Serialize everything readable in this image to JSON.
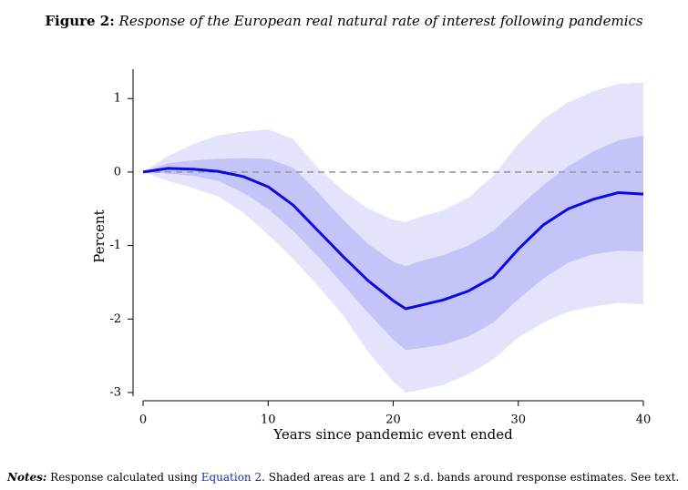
{
  "figure": {
    "label": "Figure 2:",
    "title": "Response of the European real natural rate of interest following pandemics"
  },
  "notes": {
    "label": "Notes:",
    "text_before": "Response calculated using ",
    "link_text": "Equation 2",
    "text_after": ". Shaded areas are 1 and 2 s.d. bands around response estimates. See text."
  },
  "chart_data": {
    "type": "line",
    "title": "Response of the European real natural rate of interest following pandemics",
    "xlabel": "Years since pandemic event ended",
    "ylabel": "Percent",
    "xlim": [
      0,
      40
    ],
    "ylim": [
      -3.05,
      1.35
    ],
    "xticks": [
      0,
      10,
      20,
      30,
      40
    ],
    "xtick_labels": [
      "0",
      "10",
      "20",
      "30",
      "40"
    ],
    "yticks": [
      1,
      0,
      -1,
      -2,
      -3
    ],
    "ytick_labels": [
      "1",
      "0",
      "-1",
      "-2",
      "-3"
    ],
    "reference_line": {
      "y": 0,
      "style": "dashed",
      "color": "#9a9a9a"
    },
    "x": [
      0,
      2,
      4,
      6,
      8,
      10,
      12,
      14,
      16,
      18,
      20,
      21,
      22,
      24,
      26,
      28,
      30,
      32,
      34,
      36,
      38,
      40
    ],
    "series": [
      {
        "type": "line",
        "values": [
          0.0,
          0.05,
          0.04,
          0.01,
          -0.06,
          -0.2,
          -0.45,
          -0.8,
          -1.15,
          -1.48,
          -1.75,
          -1.86,
          -1.82,
          -1.74,
          -1.62,
          -1.43,
          -1.05,
          -0.72,
          -0.5,
          -0.37,
          -0.28,
          -0.3
        ],
        "color": "#0a0ae6"
      },
      {
        "type": "band",
        "lower": [
          0.0,
          -0.02,
          -0.05,
          -0.12,
          -0.28,
          -0.5,
          -0.8,
          -1.15,
          -1.53,
          -1.92,
          -2.28,
          -2.42,
          -2.4,
          -2.35,
          -2.24,
          -2.05,
          -1.73,
          -1.45,
          -1.23,
          -1.12,
          -1.07,
          -1.08
        ],
        "upper": [
          0.0,
          0.12,
          0.16,
          0.18,
          0.19,
          0.18,
          0.06,
          -0.28,
          -0.65,
          -0.98,
          -1.22,
          -1.28,
          -1.22,
          -1.13,
          -1.0,
          -0.8,
          -0.48,
          -0.18,
          0.08,
          0.28,
          0.43,
          0.5
        ],
        "color": "#c4c4f8"
      },
      {
        "type": "band",
        "lower": [
          0.0,
          -0.12,
          -0.22,
          -0.33,
          -0.55,
          -0.85,
          -1.18,
          -1.55,
          -1.95,
          -2.45,
          -2.85,
          -3.0,
          -2.97,
          -2.9,
          -2.75,
          -2.55,
          -2.25,
          -2.05,
          -1.9,
          -1.83,
          -1.78,
          -1.8
        ],
        "upper": [
          0.0,
          0.22,
          0.38,
          0.5,
          0.55,
          0.58,
          0.45,
          0.05,
          -0.25,
          -0.5,
          -0.65,
          -0.68,
          -0.62,
          -0.52,
          -0.35,
          -0.05,
          0.38,
          0.72,
          0.95,
          1.1,
          1.2,
          1.22
        ],
        "color": "#e3e3fc"
      }
    ]
  }
}
